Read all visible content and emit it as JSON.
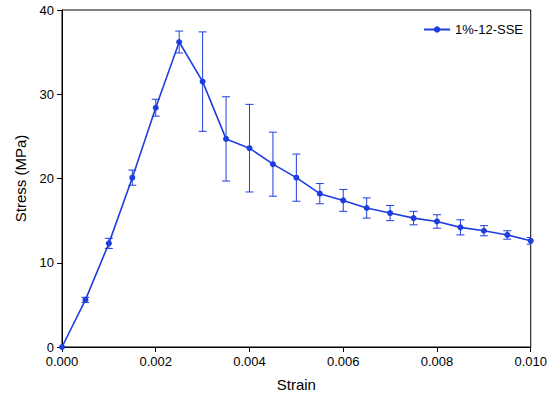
{
  "chart_data": {
    "type": "line",
    "x_label": "Strain",
    "y_label": "Stress (MPa)",
    "x": [
      0,
      0.0005,
      0.001,
      0.0015,
      0.002,
      0.0025,
      0.003,
      0.0035,
      0.004,
      0.0045,
      0.005,
      0.0055,
      0.006,
      0.0065,
      0.007,
      0.0075,
      0.008,
      0.0085,
      0.009,
      0.0095,
      0.01
    ],
    "series": [
      {
        "name": "1%-12-SSE",
        "color": "#1f3ee0",
        "marker": "circle",
        "line_style": "solid",
        "values": [
          0,
          5.6,
          12.3,
          20.1,
          28.4,
          36.2,
          31.5,
          24.7,
          23.6,
          21.7,
          20.1,
          18.2,
          17.4,
          16.5,
          15.9,
          15.3,
          14.9,
          14.2,
          13.8,
          13.3,
          12.6
        ],
        "errors": [
          0,
          0.3,
          0.6,
          0.9,
          1.0,
          1.3,
          5.9,
          5.0,
          5.2,
          3.8,
          2.8,
          1.2,
          1.3,
          1.2,
          0.9,
          0.8,
          0.8,
          0.9,
          0.6,
          0.5,
          0.4
        ]
      }
    ],
    "xlim": [
      0,
      0.01
    ],
    "xticks": [
      {
        "value": 0,
        "label": "0.000"
      },
      {
        "value": 0.002,
        "label": "0.002"
      },
      {
        "value": 0.004,
        "label": "0.004"
      },
      {
        "value": 0.006,
        "label": "0.006"
      },
      {
        "value": 0.008,
        "label": "0.008"
      },
      {
        "value": 0.01,
        "label": "0.010"
      }
    ],
    "ylim": [
      0,
      40
    ],
    "yticks": [
      0,
      10,
      20,
      30,
      40
    ],
    "grid": false,
    "legend": "top-right"
  }
}
